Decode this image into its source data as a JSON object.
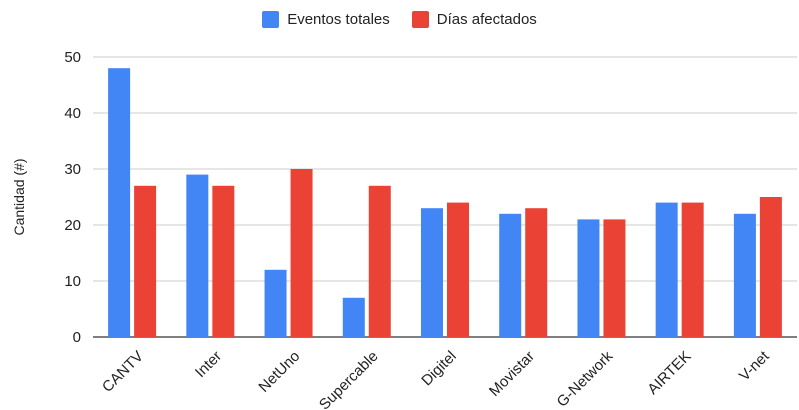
{
  "chart_data": {
    "type": "bar",
    "categories": [
      "CANTV",
      "Inter",
      "NetUno",
      "Supercable",
      "Digitel",
      "Movistar",
      "G-Network",
      "AIRTEK",
      "V-net"
    ],
    "series": [
      {
        "name": "Eventos totales",
        "color": "#4285f4",
        "values": [
          48,
          29,
          12,
          7,
          23,
          22,
          21,
          24,
          22
        ]
      },
      {
        "name": "Días afectados",
        "color": "#ea4335",
        "values": [
          27,
          27,
          30,
          27,
          24,
          23,
          21,
          24,
          25
        ]
      }
    ],
    "title": "",
    "xlabel": "",
    "ylabel": "Cantidad (#)",
    "ylim": [
      0,
      50
    ],
    "yticks": [
      "0",
      "10",
      "20",
      "30",
      "40",
      "50"
    ],
    "grid": true,
    "legend": "top-center"
  }
}
